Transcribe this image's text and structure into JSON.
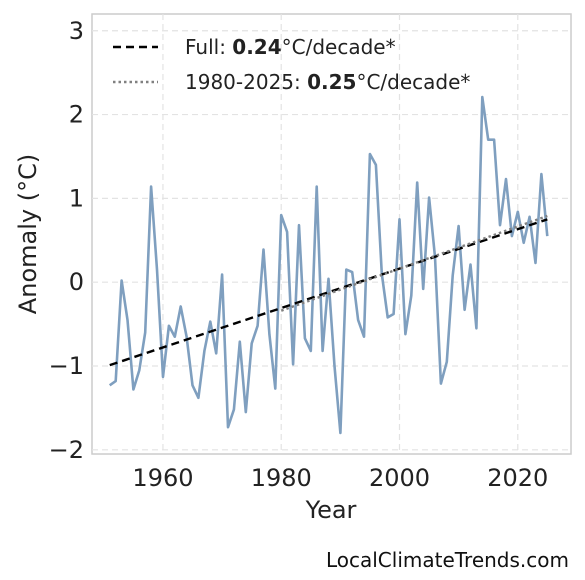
{
  "chart_data": {
    "type": "line",
    "xlabel": "Year",
    "ylabel": "Anomaly (°C)",
    "xlim": [
      1948,
      2029
    ],
    "ylim": [
      -2.05,
      3.2
    ],
    "xticks": [
      1960,
      1980,
      2000,
      2020
    ],
    "yticks": [
      -2,
      -1,
      0,
      1,
      2,
      3
    ],
    "ytick_labels": [
      "−2",
      "−1",
      "0",
      "1",
      "2",
      "3"
    ],
    "grid": true,
    "legend_position": "top-left",
    "series": [
      {
        "name": "",
        "color": "#7f9fbf",
        "x": [
          1951,
          1952,
          1953,
          1954,
          1955,
          1956,
          1957,
          1958,
          1959,
          1960,
          1961,
          1962,
          1963,
          1964,
          1965,
          1966,
          1967,
          1968,
          1969,
          1970,
          1971,
          1972,
          1973,
          1974,
          1975,
          1976,
          1977,
          1978,
          1979,
          1980,
          1981,
          1982,
          1983,
          1984,
          1985,
          1986,
          1987,
          1988,
          1989,
          1990,
          1991,
          1992,
          1993,
          1994,
          1995,
          1996,
          1997,
          1998,
          1999,
          2000,
          2001,
          2002,
          2003,
          2004,
          2005,
          2006,
          2007,
          2008,
          2009,
          2010,
          2011,
          2012,
          2013,
          2014,
          2015,
          2016,
          2017,
          2018,
          2019,
          2020,
          2021,
          2022,
          2023,
          2024,
          2025
        ],
        "y": [
          -1.23,
          -1.18,
          0.02,
          -0.45,
          -1.28,
          -1.05,
          -0.6,
          1.14,
          0.15,
          -1.13,
          -0.52,
          -0.65,
          -0.29,
          -0.65,
          -1.23,
          -1.38,
          -0.82,
          -0.47,
          -0.85,
          0.09,
          -1.73,
          -1.52,
          -0.71,
          -1.55,
          -0.73,
          -0.52,
          0.39,
          -0.62,
          -1.27,
          0.8,
          0.6,
          -0.98,
          0.68,
          -0.67,
          -0.82,
          1.14,
          -0.82,
          0.04,
          -1.0,
          -1.8,
          0.15,
          0.12,
          -0.45,
          -0.65,
          1.53,
          1.4,
          0.1,
          -0.42,
          -0.38,
          0.75,
          -0.62,
          -0.16,
          1.19,
          -0.08,
          1.01,
          0.3,
          -1.21,
          -0.95,
          0.08,
          0.67,
          -0.33,
          0.21,
          -0.55,
          2.21,
          1.7,
          1.7,
          0.68,
          1.23,
          0.55,
          0.84,
          0.47,
          0.78,
          0.23,
          1.29,
          0.55
        ]
      }
    ],
    "trends": [
      {
        "label_prefix": "Full: ",
        "label_value": "0.24",
        "label_suffix": "°C/decade*",
        "style": "dashed",
        "color": "#000000",
        "x": [
          1951,
          2025
        ],
        "y": [
          -0.99,
          0.75
        ]
      },
      {
        "label_prefix": "1980-2025: ",
        "label_value": "0.25",
        "label_suffix": "°C/decade*",
        "style": "dotted",
        "color": "#808080",
        "x": [
          1980,
          2025
        ],
        "y": [
          -0.34,
          0.79
        ]
      }
    ]
  },
  "watermark": "LocalClimateTrends.com"
}
